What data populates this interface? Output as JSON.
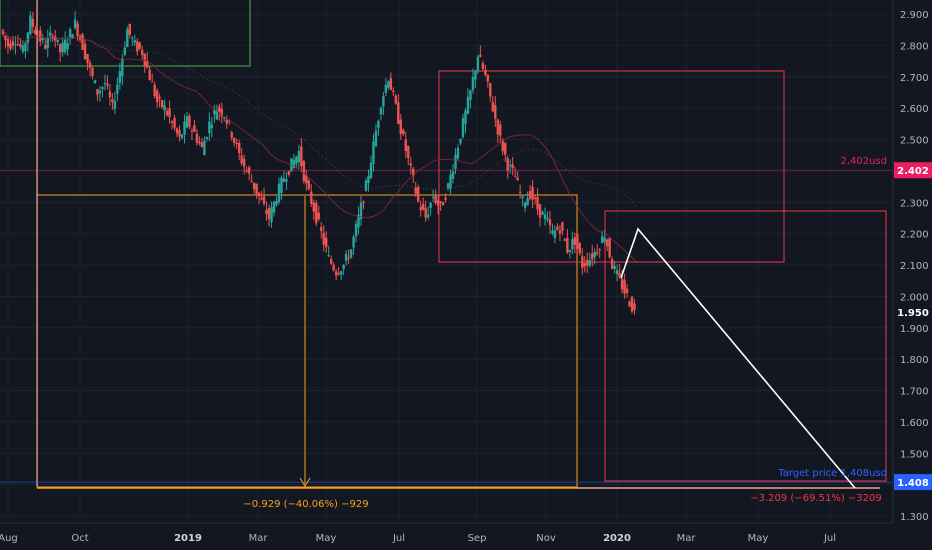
{
  "chart_data": {
    "type": "candlestick",
    "y_ticks": [
      "2.900",
      "2.800",
      "2.700",
      "2.600",
      "2.500",
      "2.400",
      "2.300",
      "2.200",
      "2.100",
      "2.000",
      "1.900",
      "1.800",
      "1.700",
      "1.600",
      "1.500",
      "1.400",
      "1.300"
    ],
    "x_ticks": [
      {
        "label": "Aug",
        "bold": false
      },
      {
        "label": "Oct",
        "bold": false
      },
      {
        "label": "2019",
        "bold": true
      },
      {
        "label": "Mar",
        "bold": false
      },
      {
        "label": "May",
        "bold": false
      },
      {
        "label": "Jul",
        "bold": false
      },
      {
        "label": "Sep",
        "bold": false
      },
      {
        "label": "Nov",
        "bold": false
      },
      {
        "label": "2020",
        "bold": true
      },
      {
        "label": "Mar",
        "bold": false
      },
      {
        "label": "May",
        "bold": false
      },
      {
        "label": "Jul",
        "bold": false
      }
    ],
    "ylim": [
      1.25,
      2.95
    ],
    "price_path": [
      2.85,
      2.8,
      2.82,
      2.78,
      2.88,
      2.83,
      2.8,
      2.84,
      2.78,
      2.82,
      2.87,
      2.8,
      2.72,
      2.65,
      2.68,
      2.6,
      2.72,
      2.85,
      2.8,
      2.78,
      2.7,
      2.62,
      2.6,
      2.55,
      2.5,
      2.56,
      2.52,
      2.47,
      2.55,
      2.6,
      2.58,
      2.52,
      2.45,
      2.4,
      2.35,
      2.3,
      2.25,
      2.32,
      2.38,
      2.42,
      2.46,
      2.35,
      2.28,
      2.2,
      2.12,
      2.08,
      2.1,
      2.15,
      2.25,
      2.35,
      2.48,
      2.62,
      2.7,
      2.6,
      2.5,
      2.4,
      2.3,
      2.25,
      2.32,
      2.28,
      2.35,
      2.45,
      2.55,
      2.65,
      2.77,
      2.7,
      2.6,
      2.5,
      2.42,
      2.38,
      2.3,
      2.33,
      2.28,
      2.25,
      2.2,
      2.22,
      2.15,
      2.18,
      2.1,
      2.12,
      2.15,
      2.2,
      2.1,
      2.05,
      2.0,
      1.95
    ],
    "current_price": "1.950",
    "resistance": {
      "label": "2,402usd",
      "badge": "2.402",
      "value": 2.402,
      "color": "#e91e63"
    },
    "target": {
      "label": "Target price 1,408usd",
      "badge": "1.408",
      "value": 1.408,
      "color": "#2962ff"
    },
    "measure_left": {
      "label": "−0.929 (−40.06%) −929",
      "color": "#f7a21b"
    },
    "measure_right": {
      "label": "−3.209 (−69.51%) −3209",
      "color": "#f23645"
    }
  }
}
